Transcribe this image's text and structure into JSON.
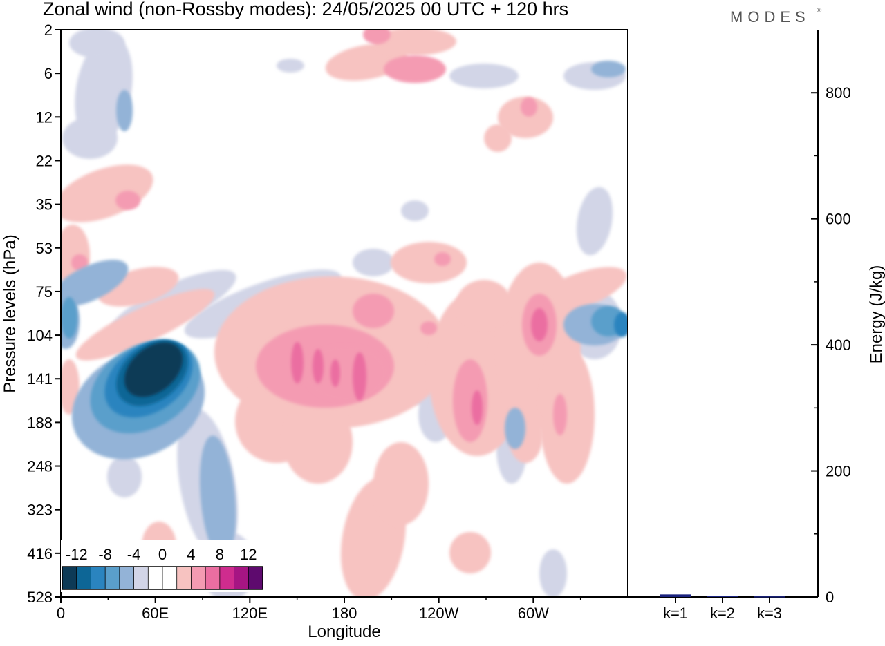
{
  "header": {
    "title": "Zonal wind (non-Rossby modes):  24/05/2025  00 UTC  + 120 hrs",
    "brand": "MODES",
    "brand_mark": "®"
  },
  "chart_data": [
    {
      "type": "heatmap",
      "title": "Zonal wind (non-Rossby modes):  24/05/2025  00 UTC  + 120 hrs",
      "xlabel": "Longitude",
      "ylabel": "Pressure levels (hPa)",
      "x_ticks": [
        "0",
        "60E",
        "120E",
        "180",
        "120W",
        "60W"
      ],
      "x_tick_degrees": [
        0,
        60,
        120,
        180,
        240,
        300
      ],
      "xlim": [
        0,
        360
      ],
      "y_ticks": [
        "2",
        "6",
        "12",
        "22",
        "35",
        "53",
        "75",
        "104",
        "141",
        "188",
        "248",
        "323",
        "416",
        "528"
      ],
      "y_axis_direction": "top-to-bottom increasing pressure",
      "colorbar": {
        "labels": [
          "-12",
          "-8",
          "-4",
          "0",
          "4",
          "8",
          "12"
        ],
        "levels": [
          -14,
          -12,
          -10,
          -8,
          -6,
          -4,
          -2,
          0,
          2,
          4,
          6,
          8,
          10,
          12,
          14
        ],
        "colors": [
          "#0d3a56",
          "#0d6696",
          "#2a84bf",
          "#5a9fcb",
          "#93b3d7",
          "#d2d5e7",
          "#ffffff",
          "#ffffff",
          "#f7c3c1",
          "#f49bb2",
          "#eb6ea1",
          "#cf2c8e",
          "#a61583",
          "#5e0a6e"
        ],
        "placement": "bottom-left"
      },
      "features": [
        {
          "name": "easterly core",
          "lon": 50,
          "level": "141",
          "value": -14
        },
        {
          "name": "westerly cells",
          "lon": 180,
          "level": "141",
          "value": 8
        },
        {
          "name": "westerly cell",
          "lon": 300,
          "level": "104",
          "value": 8
        },
        {
          "name": "easterly cell",
          "lon": 358,
          "level": "104",
          "value": -10
        }
      ]
    },
    {
      "type": "bar",
      "ylabel": "Energy (J/kg)",
      "categories": [
        "k=1",
        "k=2",
        "k=3"
      ],
      "values": [
        4,
        2,
        1
      ],
      "ylim": [
        0,
        900
      ],
      "y_ticks": [
        0,
        200,
        400,
        600,
        800
      ],
      "bar_colors": [
        "#1a237e",
        "#1a237e",
        "#1a237e"
      ],
      "y_axis_side": "right"
    }
  ]
}
